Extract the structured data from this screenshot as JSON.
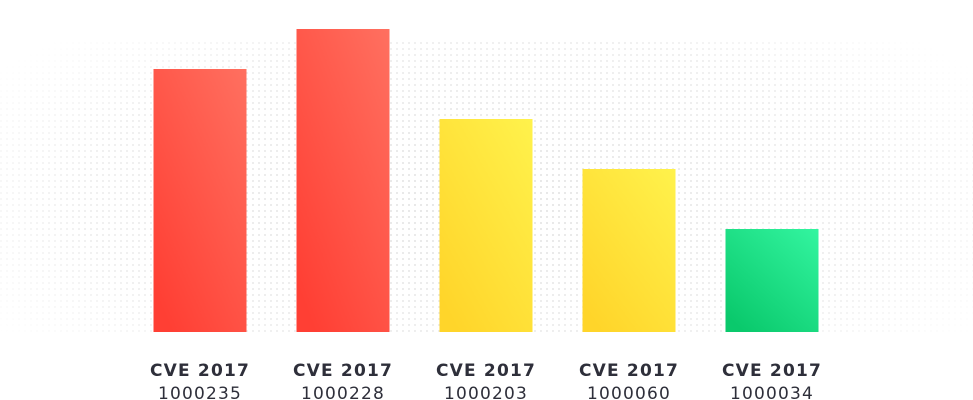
{
  "chart_data": {
    "type": "bar",
    "title": "",
    "xlabel": "",
    "ylabel": "",
    "categories": [
      {
        "line1": "CVE 2017",
        "line2": "1000235"
      },
      {
        "line1": "CVE 2017",
        "line2": "1000228"
      },
      {
        "line1": "CVE 2017",
        "line2": "1000203"
      },
      {
        "line1": "CVE 2017",
        "line2": "1000060"
      },
      {
        "line1": "CVE 2017",
        "line2": "1000034"
      }
    ],
    "values": [
      263,
      303,
      213,
      163,
      103
    ],
    "ylim": [
      0,
      310
    ],
    "grid": false,
    "colors": [
      {
        "top": "#ff7060",
        "bottom": "#ff3f34"
      },
      {
        "top": "#ff7060",
        "bottom": "#ff3f34"
      },
      {
        "top": "#fff24c",
        "bottom": "#ffd52a"
      },
      {
        "top": "#fff24c",
        "bottom": "#ffd52a"
      },
      {
        "top": "#33f5a0",
        "bottom": "#0ac96c"
      }
    ]
  }
}
